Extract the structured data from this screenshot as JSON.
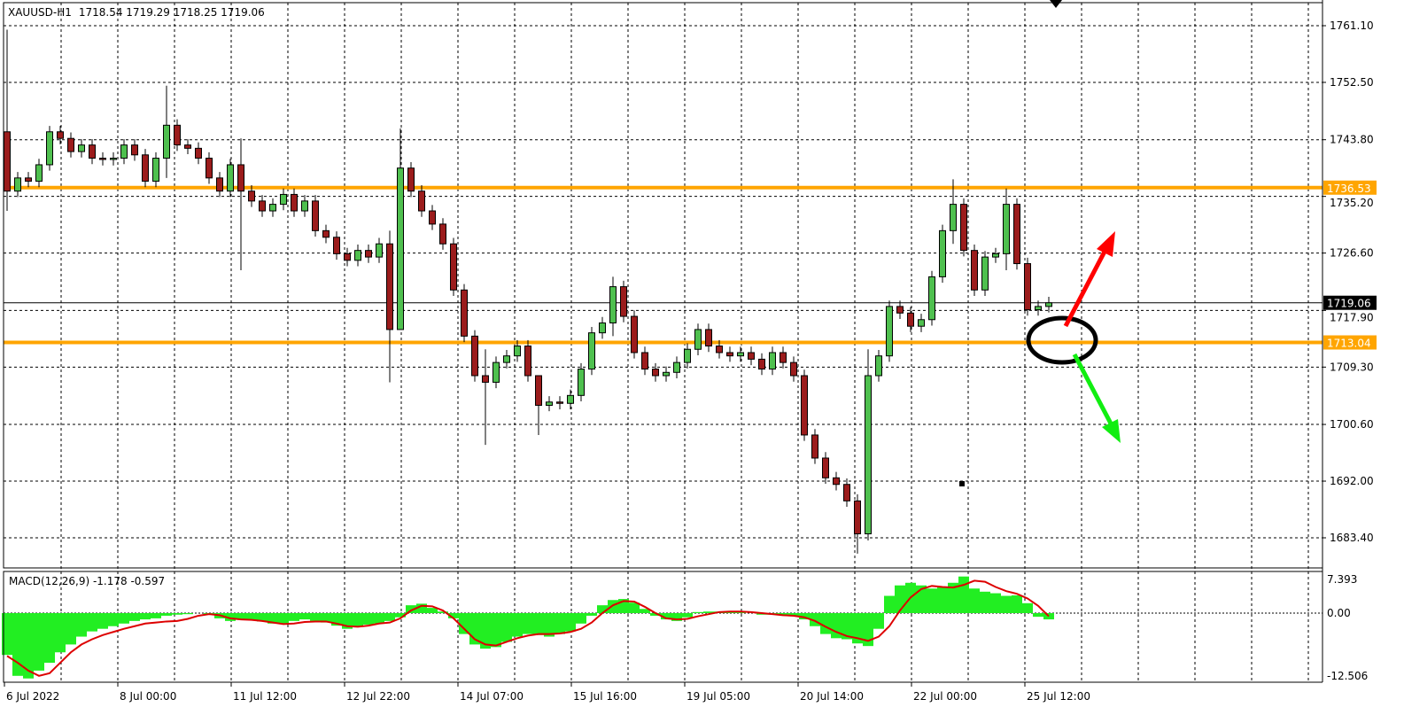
{
  "header": {
    "symbol": "XAUUSD-",
    "timeframe": "H1",
    "ohlc": "1718.54 1719.29 1718.25 1719.06"
  },
  "colors": {
    "bull": "#4fc04f",
    "bear": "#9b1c1c",
    "level": "#ffa500",
    "macd_hist": "#22ee22",
    "macd_signal": "#dd0000",
    "up_arrow": "#ff0000",
    "down_arrow": "#11ee11"
  },
  "chart_data": [
    {
      "type": "candlestick",
      "title": "XAUUSD- H1",
      "y_ticks": [
        "1761.10",
        "1752.50",
        "1743.80",
        "1735.20",
        "1726.60",
        "1717.90",
        "1709.30",
        "1700.60",
        "1692.00",
        "1683.40"
      ],
      "ylim": [
        1683.4,
        1761.1
      ],
      "x_ticks": [
        "6 Jul 2022",
        "8 Jul 00:00",
        "11 Jul 12:00",
        "12 Jul 22:00",
        "14 Jul 07:00",
        "15 Jul 16:00",
        "19 Jul 05:00",
        "20 Jul 14:00",
        "22 Jul 00:00",
        "25 Jul 12:00"
      ],
      "grid": true,
      "first_open": 1745,
      "close": [
        1736,
        1738,
        1737.5,
        1740,
        1745,
        1744,
        1742,
        1743,
        1741,
        1740.8,
        1741,
        1743,
        1741.5,
        1737.5,
        1741,
        1746,
        1743,
        1742.5,
        1741,
        1738,
        1736,
        1740,
        1736,
        1734.5,
        1733,
        1734,
        1735.5,
        1733,
        1734.5,
        1730,
        1729,
        1726.5,
        1725.5,
        1727,
        1726,
        1728,
        1715,
        1739.5,
        1736,
        1733,
        1731,
        1728,
        1721,
        1714,
        1708,
        1707,
        1710,
        1711,
        1712.5,
        1708,
        1703.5,
        1704,
        1703.8,
        1705,
        1709,
        1714.5,
        1716,
        1721.5,
        1717,
        1711.5,
        1709,
        1708,
        1708.5,
        1710,
        1712,
        1715,
        1712.5,
        1711.5,
        1711,
        1711.5,
        1710.5,
        1709,
        1711.5,
        1710,
        1708,
        1699,
        1695.5,
        1692.5,
        1691.5,
        1689,
        1684,
        1708,
        1711,
        1718.5,
        1717.5,
        1715.5,
        1716.5,
        1723,
        1730,
        1734,
        1727,
        1721,
        1726,
        1726.5,
        1734,
        1725,
        1718,
        1718.5,
        1719.06
      ],
      "wick_extremes": {
        "0": [
          1760.5,
          1733
        ],
        "15": [
          1752,
          1738
        ],
        "22": [
          1744,
          1724
        ],
        "36": [
          1730,
          1707
        ],
        "37": [
          1745.5,
          1735
        ],
        "45": [
          1712,
          1697.5
        ],
        "50": [
          1708,
          1699
        ],
        "57": [
          1723,
          1714
        ],
        "80": [
          1690,
          1681
        ],
        "81": [
          1712,
          1683
        ],
        "89": [
          1737.8,
          1728
        ],
        "94": [
          1736.4,
          1724
        ]
      },
      "levels": [
        {
          "price": 1736.53,
          "label": "1736.53"
        },
        {
          "price": 1713.04,
          "label": "1713.04"
        }
      ],
      "current_price": {
        "price": 1719.06,
        "label": "1719.06"
      }
    },
    {
      "type": "bar+line",
      "title": "MACD(12,26,9) -1.178 -0.597",
      "y_ticks": [
        "7.393",
        "0.00",
        "-12.506"
      ],
      "ylim": [
        -12.506,
        7.393
      ],
      "histogram": [
        -8,
        -12,
        -12.5,
        -11,
        -9.5,
        -7.5,
        -6,
        -4.5,
        -3.5,
        -3,
        -2.5,
        -2,
        -1.5,
        -1.2,
        -1,
        -0.5,
        -0.3,
        -0.2,
        0,
        -0.3,
        -1,
        -1.5,
        -1.2,
        -1.3,
        -1.6,
        -2,
        -2,
        -1.5,
        -1.2,
        -1.5,
        -1.8,
        -2.4,
        -3,
        -2.5,
        -2.2,
        -2,
        -1.5,
        -0.8,
        1.5,
        1.8,
        1,
        0.3,
        -1,
        -4,
        -6,
        -6.8,
        -6.5,
        -5.5,
        -4.5,
        -4,
        -4.2,
        -4.5,
        -4,
        -3.5,
        -2,
        -0.5,
        1.5,
        2.5,
        2.7,
        2,
        0.8,
        -0.5,
        -1.2,
        -1.5,
        -0.8,
        0.2,
        0.3,
        0.3,
        0.2,
        0.2,
        0,
        -0.3,
        -0.3,
        -0.3,
        -0.5,
        -1.2,
        -2.5,
        -4,
        -4.8,
        -5,
        -5.8,
        -6.3,
        -3,
        3.3,
        5.3,
        5.8,
        5.3,
        4.7,
        5,
        5.8,
        7,
        4.7,
        4.1,
        3.8,
        3.3,
        3.4,
        1.9,
        -0.7,
        -1.2
      ],
      "signal": [
        -8.2,
        -9.5,
        -11,
        -12,
        -11.5,
        -9.5,
        -7.5,
        -6,
        -5,
        -4.2,
        -3.6,
        -3,
        -2.5,
        -2,
        -1.8,
        -1.6,
        -1.5,
        -1.1,
        -0.5,
        -0.2,
        -0.4,
        -1,
        -1.2,
        -1.3,
        -1.5,
        -1.8,
        -2.1,
        -2,
        -1.7,
        -1.6,
        -1.6,
        -2,
        -2.5,
        -2.6,
        -2.4,
        -2,
        -1.8,
        -1,
        0.5,
        1.4,
        1.3,
        0.5,
        -1,
        -3,
        -5,
        -6,
        -6.2,
        -5.5,
        -4.8,
        -4.3,
        -4,
        -4,
        -3.9,
        -3.6,
        -3,
        -1.8,
        0,
        1.5,
        2.3,
        2.2,
        1.2,
        0,
        -1,
        -1.2,
        -1.1,
        -0.6,
        -0.2,
        0.2,
        0.3,
        0.3,
        0.2,
        0,
        -0.2,
        -0.4,
        -0.5,
        -0.8,
        -1.5,
        -2.6,
        -3.6,
        -4.4,
        -4.8,
        -5.3,
        -4.5,
        -2.5,
        0.5,
        3,
        4.6,
        5.2,
        5,
        4.9,
        5.4,
        6.2,
        6,
        5,
        4.2,
        3.7,
        2.8,
        1.4,
        -0.6
      ]
    }
  ],
  "annotations": {
    "up_arrow": "red-arrow-up-icon",
    "down_arrow": "green-arrow-down-icon",
    "ellipse": "black-ellipse",
    "shift_marker": "triangle-down-icon"
  }
}
